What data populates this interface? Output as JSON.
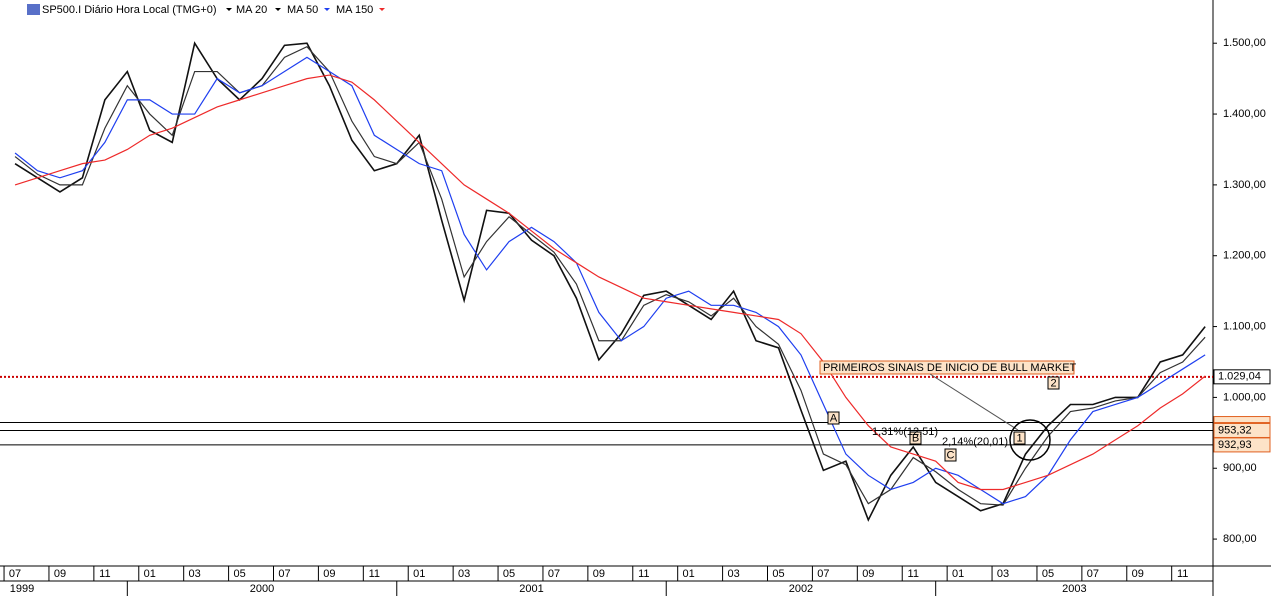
{
  "chart_data": {
    "type": "line",
    "title": "SP500.I Diário Hora Local (TMG+0)",
    "x": [
      0,
      1,
      2,
      3,
      4,
      5,
      6,
      7,
      8,
      9,
      10,
      11,
      12,
      13,
      14,
      15,
      16,
      17,
      18,
      19,
      20,
      21,
      22,
      23,
      24,
      25,
      26,
      27,
      28,
      29,
      30,
      31,
      32,
      33,
      34,
      35,
      36,
      37,
      38,
      39,
      40,
      41,
      42,
      43,
      44,
      45,
      46,
      47,
      48,
      49,
      50,
      51,
      52,
      53
    ],
    "xlim": [
      -0.67,
      53.35
    ],
    "ylim": [
      762,
      1561
    ],
    "xticks": [
      {
        "value": 0,
        "label": "07"
      },
      {
        "value": 2,
        "label": "09"
      },
      {
        "value": 4,
        "label": "11"
      },
      {
        "value": 6,
        "label": "01"
      },
      {
        "value": 8,
        "label": "03"
      },
      {
        "value": 10,
        "label": "05"
      },
      {
        "value": 12,
        "label": "07"
      },
      {
        "value": 14,
        "label": "09"
      },
      {
        "value": 16,
        "label": "11"
      },
      {
        "value": 18,
        "label": "01"
      },
      {
        "value": 20,
        "label": "03"
      },
      {
        "value": 22,
        "label": "05"
      },
      {
        "value": 24,
        "label": "07"
      },
      {
        "value": 26,
        "label": "09"
      },
      {
        "value": 28,
        "label": "11"
      },
      {
        "value": 30,
        "label": "01"
      },
      {
        "value": 32,
        "label": "03"
      },
      {
        "value": 34,
        "label": "05"
      },
      {
        "value": 36,
        "label": "07"
      },
      {
        "value": 38,
        "label": "09"
      },
      {
        "value": 40,
        "label": "11"
      },
      {
        "value": 42,
        "label": "01"
      },
      {
        "value": 44,
        "label": "03"
      },
      {
        "value": 46,
        "label": "05"
      },
      {
        "value": 48,
        "label": "07"
      },
      {
        "value": 50,
        "label": "09"
      },
      {
        "value": 52,
        "label": "11"
      }
    ],
    "years": [
      {
        "value": -0.67,
        "label": "1999"
      },
      {
        "value": 5,
        "label": "2000"
      },
      {
        "value": 17,
        "label": "2001"
      },
      {
        "value": 29,
        "label": "2002"
      },
      {
        "value": 41,
        "label": "2003"
      }
    ],
    "yticks": [
      {
        "value": 800,
        "label": "800,00"
      },
      {
        "value": 900,
        "label": "900,00"
      },
      {
        "value": 1000,
        "label": "1.000,00"
      },
      {
        "value": 1100,
        "label": "1.100,00"
      },
      {
        "value": 1200,
        "label": "1.200,00"
      },
      {
        "value": 1300,
        "label": "1.300,00"
      },
      {
        "value": 1400,
        "label": "1.400,00"
      },
      {
        "value": 1500,
        "label": "1.500,00"
      }
    ],
    "series": [
      {
        "name": "SP500.I Diário Hora Local (TMG+0)",
        "color": "#111111",
        "values": [
          1330,
          1310,
          1290,
          1310,
          1420,
          1460,
          1377,
          1360,
          1500,
          1450,
          1420,
          1450,
          1497,
          1500,
          1440,
          1363,
          1320,
          1330,
          1370,
          1250,
          1137,
          1264,
          1260,
          1222,
          1200,
          1140,
          1053,
          1090,
          1144,
          1150,
          1130,
          1110,
          1150,
          1080,
          1070,
          982,
          897,
          910,
          827,
          890,
          930,
          880,
          860,
          840,
          850,
          920,
          960,
          990,
          990,
          1000,
          1000,
          1050,
          1060,
          1100
        ]
      },
      {
        "name": "MA 20",
        "color": "#333333",
        "values": [
          1340,
          1315,
          1300,
          1300,
          1380,
          1440,
          1400,
          1370,
          1460,
          1460,
          1430,
          1440,
          1480,
          1495,
          1460,
          1390,
          1340,
          1330,
          1360,
          1280,
          1170,
          1220,
          1255,
          1230,
          1205,
          1160,
          1080,
          1080,
          1130,
          1145,
          1135,
          1115,
          1140,
          1100,
          1075,
          1010,
          920,
          905,
          850,
          870,
          915,
          895,
          870,
          850,
          848,
          900,
          945,
          980,
          985,
          995,
          1000,
          1035,
          1050,
          1085
        ]
      },
      {
        "name": "MA 50",
        "color": "#1f3ff0",
        "values": [
          1345,
          1320,
          1310,
          1320,
          1360,
          1420,
          1420,
          1400,
          1400,
          1450,
          1430,
          1440,
          1460,
          1480,
          1460,
          1440,
          1370,
          1350,
          1330,
          1320,
          1230,
          1180,
          1220,
          1240,
          1220,
          1190,
          1120,
          1080,
          1100,
          1140,
          1150,
          1130,
          1130,
          1120,
          1100,
          1060,
          990,
          920,
          890,
          870,
          880,
          900,
          890,
          870,
          850,
          860,
          890,
          940,
          980,
          990,
          1000,
          1020,
          1040,
          1060
        ]
      },
      {
        "name": "MA 150",
        "color": "#ee2a2a",
        "values": [
          1300,
          1310,
          1320,
          1330,
          1335,
          1350,
          1370,
          1380,
          1395,
          1410,
          1420,
          1430,
          1440,
          1450,
          1455,
          1445,
          1420,
          1390,
          1360,
          1330,
          1300,
          1280,
          1260,
          1235,
          1210,
          1190,
          1170,
          1155,
          1140,
          1135,
          1130,
          1125,
          1120,
          1115,
          1110,
          1090,
          1050,
          1000,
          960,
          930,
          920,
          910,
          880,
          870,
          870,
          880,
          890,
          905,
          920,
          940,
          960,
          985,
          1005,
          1030
        ]
      }
    ],
    "levels": [
      {
        "value": 1029.04,
        "label": "1.029,04",
        "color": "#cc0000"
      },
      {
        "value": 964.5,
        "color": "#000000"
      },
      {
        "value": 953.32,
        "label": "953,32",
        "color": "#000000"
      },
      {
        "value": 932.93,
        "label": "932,93",
        "color": "#000000"
      }
    ],
    "annotations": [
      "PRIMEIROS SINAIS DE INICIO DE BULL MARKET",
      "A",
      "B",
      "C",
      "1",
      "2",
      "1,31%(12,51)",
      "2,14%(20,01)"
    ]
  }
}
